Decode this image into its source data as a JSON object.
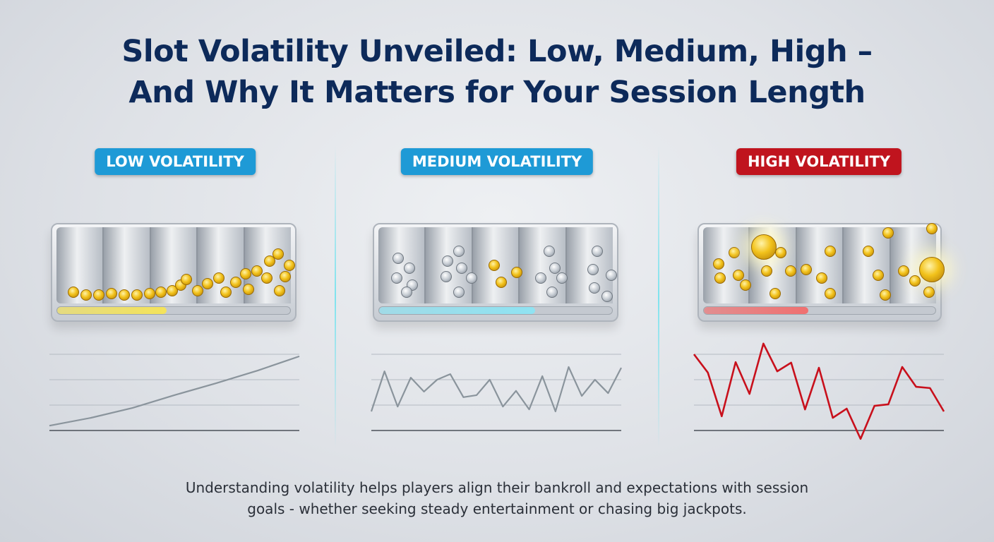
{
  "title": {
    "line1": "Slot Volatility Unveiled: Low, Medium, High –",
    "line2": "And Why It Matters for Your Session Length"
  },
  "panels": [
    {
      "label": "LOW VOLATILITY",
      "badge_color": "#1e9ad6",
      "bar_color": "#f4e35a",
      "progress_percent": 47,
      "coin_type": "gold",
      "line_color": "#8a949c",
      "line_values": [
        0.19,
        0.5,
        0.89,
        1.39,
        1.86,
        2.36,
        2.92
      ]
    },
    {
      "label": "MEDIUM VOLATILITY",
      "badge_color": "#1e9ad6",
      "bar_color": "#8fe3f2",
      "progress_percent": 67,
      "coin_type": "silver-and-gold",
      "line_color": "#8a949c",
      "line_values": [
        0.75,
        2.33,
        0.94,
        2.08,
        1.53,
        2.0,
        2.22,
        1.31,
        1.39,
        2.0,
        0.94,
        1.56,
        0.83,
        2.14,
        0.75,
        2.5,
        1.36,
        2.0,
        1.47,
        2.47
      ]
    },
    {
      "label": "HIGH VOLATILITY",
      "badge_color": "#c0141e",
      "bar_color": "#f07070",
      "progress_percent": 45,
      "coin_type": "gold-jackpot",
      "line_color": "#c8101c",
      "line_values": [
        3.0,
        2.28,
        0.56,
        2.69,
        1.44,
        3.42,
        2.33,
        2.67,
        0.83,
        2.47,
        0.5,
        0.86,
        -0.33,
        0.97,
        1.03,
        2.5,
        1.72,
        1.67,
        0.75
      ]
    }
  ],
  "caption": {
    "line1": "Understanding volatility helps players align their bankroll and expectations with session",
    "line2": "goals - whether seeking steady entertainment or chasing big jackpots."
  }
}
